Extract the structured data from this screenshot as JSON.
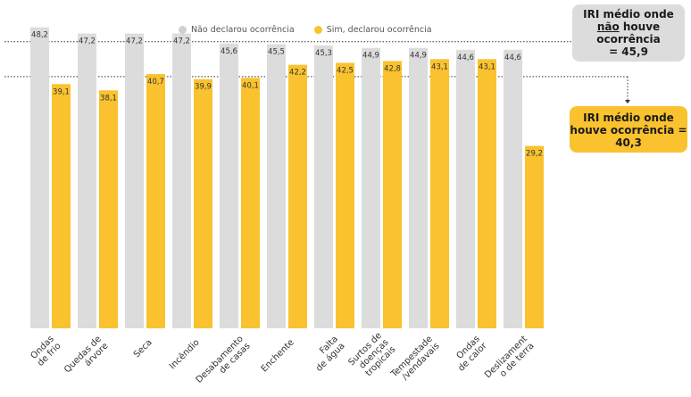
{
  "legend": {
    "series_a": "Não declarou ocorrência",
    "series_b": "Sim, declarou ocorrência"
  },
  "annotations": {
    "gray_box": {
      "line1": "IRI médio onde",
      "line2_pre": "",
      "line2_underlined": "não",
      "line2_post": " houve ocorrência",
      "line3": "= 45,9"
    },
    "yellow_box": {
      "line1": "IRI médio onde",
      "line2": "houve ocorrência =",
      "line3": "40,3"
    }
  },
  "colors": {
    "gray": "#dcdcdc",
    "yellow": "#f9c22e"
  },
  "chart_data": {
    "type": "bar",
    "categories": [
      "Ondas\nde frio",
      "Quedas de\nárvore",
      "Seca",
      "Incêndio",
      "Desabamento\nde casas",
      "Enchente",
      "Falta\nde água",
      "Surtos de\ndoenças\ntropicais",
      "Tempestade\n/vendavais",
      "Ondas\nde calor",
      "Deslizament\no de terra"
    ],
    "series": [
      {
        "name": "Não declarou ocorrência",
        "values": [
          48.2,
          47.2,
          47.2,
          47.2,
          45.6,
          45.5,
          45.3,
          44.9,
          44.9,
          44.6,
          44.6
        ],
        "labels": [
          "48,2",
          "47,2",
          "47,2",
          "47,2",
          "45,6",
          "45,5",
          "45,3",
          "44,9",
          "44,9",
          "44,6",
          "44,6"
        ]
      },
      {
        "name": "Sim, declarou ocorrência",
        "values": [
          39.1,
          38.1,
          40.7,
          39.9,
          40.1,
          42.2,
          42.5,
          42.8,
          43.1,
          43.1,
          29.2
        ],
        "labels": [
          "39,1",
          "38,1",
          "40,7",
          "39,9",
          "40,1",
          "42,2",
          "42,5",
          "42,8",
          "43,1",
          "43,1",
          "29,2"
        ]
      }
    ],
    "reference_lines": [
      {
        "name": "IRI médio onde não houve ocorrência",
        "value": 45.9
      },
      {
        "name": "IRI médio onde houve ocorrência",
        "value": 40.3
      }
    ],
    "ylim": [
      0,
      50
    ],
    "title": "",
    "xlabel": "",
    "ylabel": ""
  }
}
